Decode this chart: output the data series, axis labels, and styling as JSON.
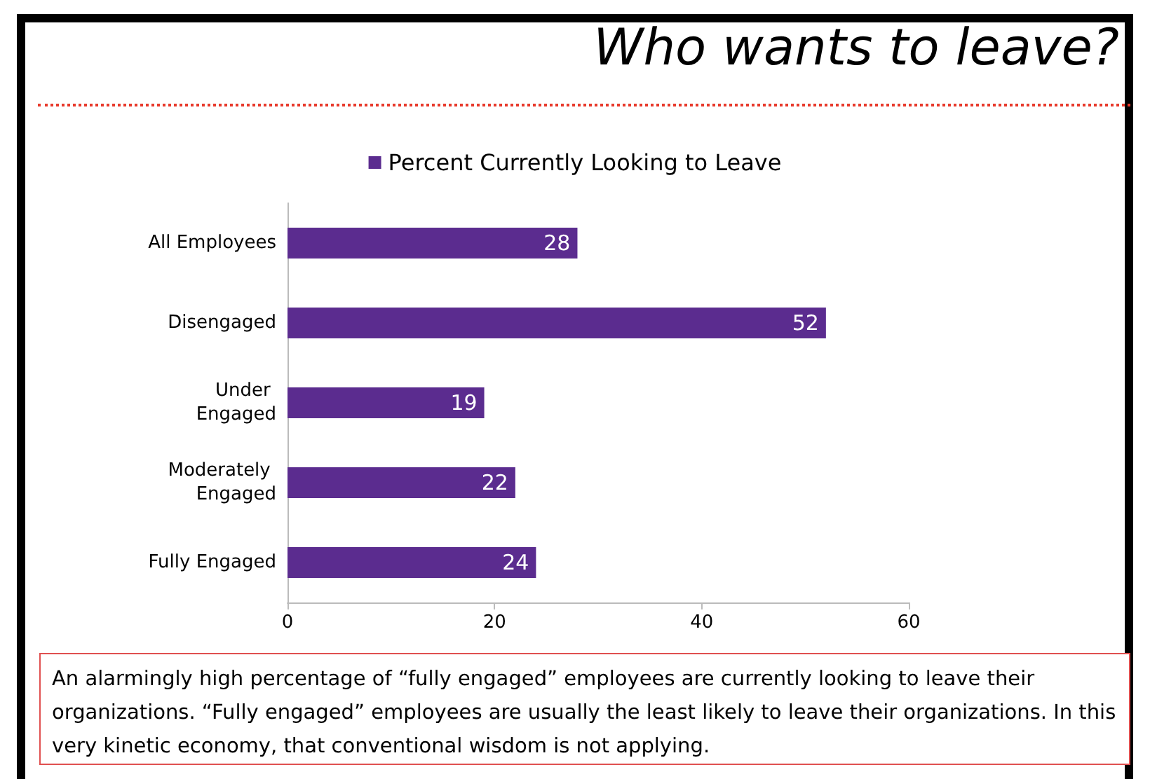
{
  "chart_data": {
    "type": "bar",
    "orientation": "horizontal",
    "title": "Who wants to leave?",
    "categories": [
      "All Employees",
      "Disengaged",
      "Under Engaged",
      "Moderately Engaged",
      "Fully Engaged"
    ],
    "series": [
      {
        "name": "Percent Currently Looking to Leave",
        "color": "#5b2c8f",
        "values": [
          28,
          52,
          19,
          22,
          24
        ]
      }
    ],
    "xlim": [
      0,
      60
    ],
    "xticks": [
      0,
      20,
      40,
      60
    ],
    "grid": false,
    "legend": "top",
    "data_labels": true,
    "annotations": [
      "An alarmingly high percentage of “fully engaged” employees are currently looking to leave their organizations. “Fully engaged” employees are usually the least likely to leave their organizations. In this very kinetic economy, that conventional wisdom is not applying."
    ]
  }
}
